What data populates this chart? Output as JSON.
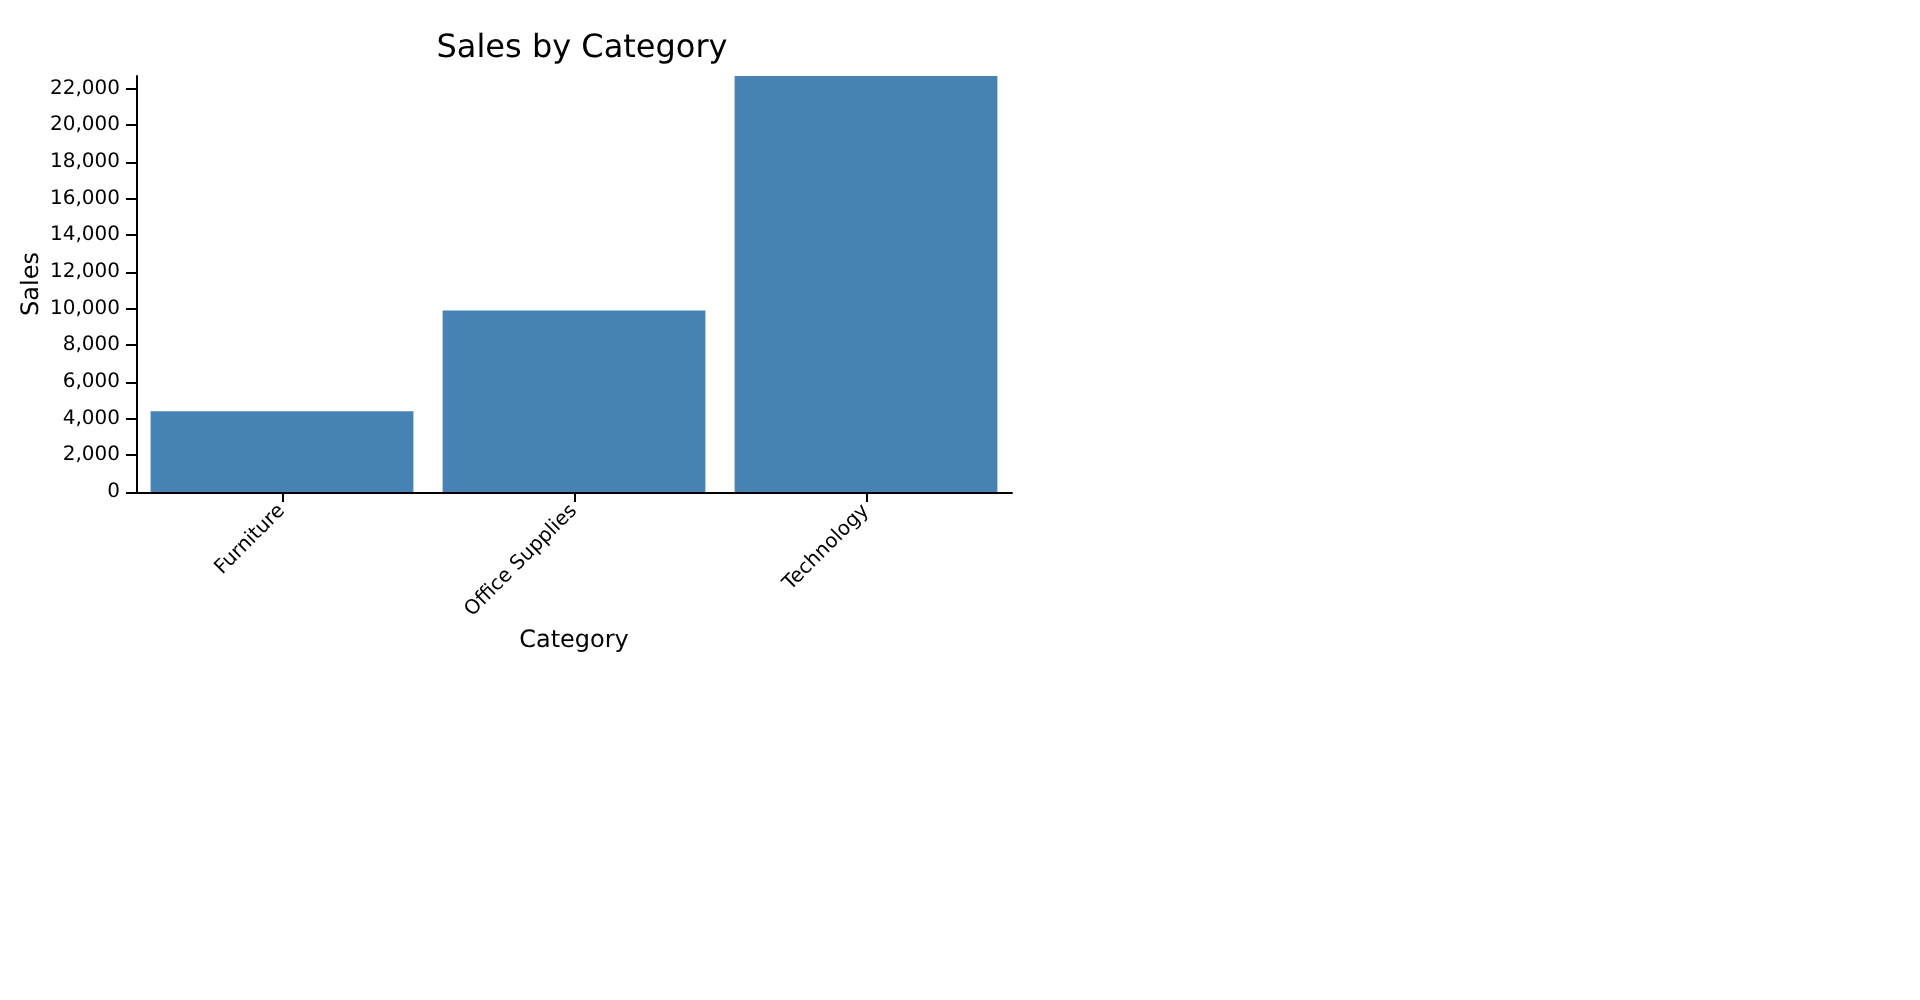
{
  "chart_data": {
    "type": "bar",
    "title": "Sales by Category",
    "xlabel": "Category",
    "ylabel": "Sales",
    "categories": [
      "Furniture",
      "Office Supplies",
      "Technology"
    ],
    "values": [
      4400,
      9900,
      22700
    ],
    "color": "#4682b4",
    "ylim": [
      0,
      22700
    ],
    "yticks": [
      0,
      {
        "value": 2000,
        "label": "2,000"
      },
      {
        "value": 4000,
        "label": "4,000"
      },
      {
        "value": 6000,
        "label": "6,000"
      },
      {
        "value": 8000,
        "label": "8,000"
      },
      {
        "value": 10000,
        "label": "10,000"
      },
      {
        "value": 12000,
        "label": "12,000"
      },
      {
        "value": 14000,
        "label": "14,000"
      },
      {
        "value": 16000,
        "label": "16,000"
      },
      {
        "value": 18000,
        "label": "18,000"
      },
      {
        "value": 20000,
        "label": "20,000"
      },
      {
        "value": 22000,
        "label": "22,000"
      }
    ],
    "grid": false
  }
}
